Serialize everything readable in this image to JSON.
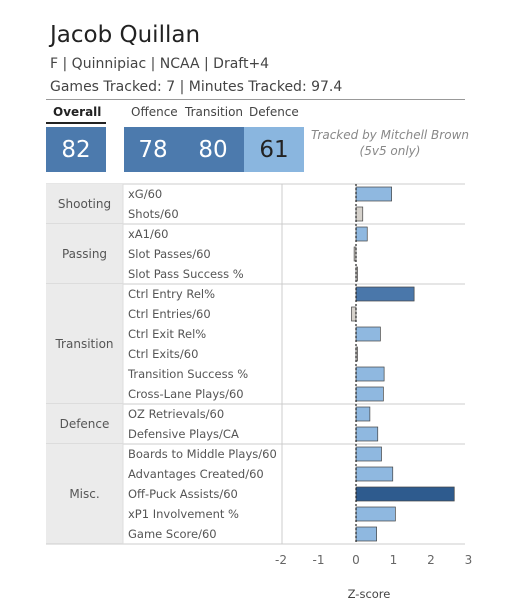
{
  "player": {
    "name": "Jacob Quillan",
    "info": "F | Quinnipiac | NCAA | Draft+4",
    "tracking": "Games Tracked: 7 | Minutes Tracked: 97.4"
  },
  "ratings": {
    "overall_label": "Overall",
    "overall_value": "82",
    "offence_label": "Offence",
    "offence_value": "78",
    "transition_label": "Transition",
    "transition_value": "80",
    "defence_label": "Defence",
    "defence_value": "61"
  },
  "credit": {
    "line1": "Tracked by Mitchell Brown",
    "line2": "(5v5 only)"
  },
  "colors": {
    "dark": "#2e5b8e",
    "mid": "#4a77aa",
    "light": "#8fb8e0",
    "pale": "#d6d2cc",
    "rating_dark": "#4c7aad",
    "rating_light": "#8ab6df"
  },
  "chart_data": {
    "type": "bar",
    "orientation": "horizontal",
    "xlabel": "Z-score",
    "xlim": [
      -2.5,
      3.2
    ],
    "xticks": [
      -2,
      -1,
      0,
      1,
      2,
      3
    ],
    "groups": [
      {
        "name": "Shooting",
        "metrics": [
          {
            "label": "xG/60",
            "value": 0.95
          },
          {
            "label": "Shots/60",
            "value": 0.18
          }
        ]
      },
      {
        "name": "Passing",
        "metrics": [
          {
            "label": "xA1/60",
            "value": 0.3
          },
          {
            "label": "Slot Passes/60",
            "value": -0.05
          },
          {
            "label": "Slot Pass Success %",
            "value": 0.04
          }
        ]
      },
      {
        "name": "Transition",
        "metrics": [
          {
            "label": "Ctrl Entry Rel%",
            "value": 1.55
          },
          {
            "label": "Ctrl Entries/60",
            "value": -0.12
          },
          {
            "label": "Ctrl Exit Rel%",
            "value": 0.65
          },
          {
            "label": "Ctrl Exits/60",
            "value": 0.04
          },
          {
            "label": "Transition Success %",
            "value": 0.75
          },
          {
            "label": "Cross-Lane Plays/60",
            "value": 0.73
          }
        ]
      },
      {
        "name": "Defence",
        "metrics": [
          {
            "label": "OZ Retrievals/60",
            "value": 0.37
          },
          {
            "label": "Defensive Plays/CA",
            "value": 0.58
          }
        ]
      },
      {
        "name": "Misc.",
        "metrics": [
          {
            "label": "Boards to Middle Plays/60",
            "value": 0.68
          },
          {
            "label": "Advantages Created/60",
            "value": 0.98
          },
          {
            "label": "Off-Puck Assists/60",
            "value": 2.62
          },
          {
            "label": "xP1 Involvement %",
            "value": 1.05
          },
          {
            "label": "Game Score/60",
            "value": 0.55
          }
        ]
      }
    ]
  }
}
